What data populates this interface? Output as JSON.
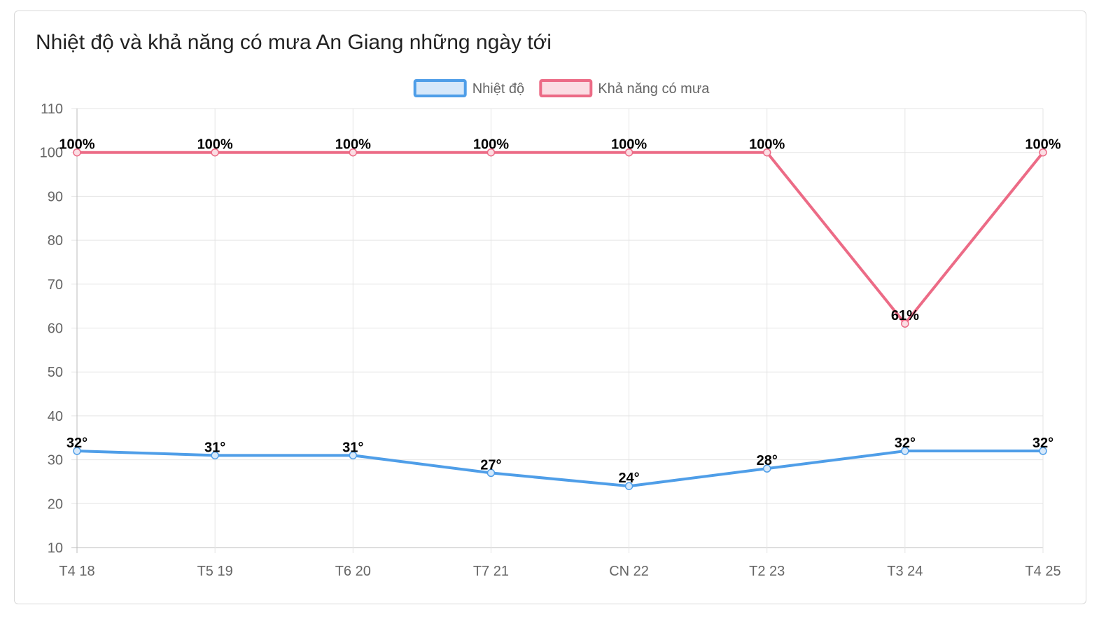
{
  "card": {
    "title": "Nhiệt độ và khả năng có mưa An Giang những ngày tới"
  },
  "chart_data": {
    "type": "line",
    "title": "Nhiệt độ và khả năng có mưa An Giang những ngày tới",
    "categories": [
      "T4 18",
      "T5 19",
      "T6 20",
      "T7 21",
      "CN 22",
      "T2 23",
      "T3 24",
      "T4 25"
    ],
    "series": [
      {
        "name": "Nhiệt độ",
        "values": [
          32,
          31,
          31,
          27,
          24,
          28,
          32,
          32
        ],
        "labels": [
          "32°",
          "31°",
          "31°",
          "27°",
          "24°",
          "28°",
          "32°",
          "32°"
        ],
        "color": "#4f9ee8",
        "fill": "#d6e8fa"
      },
      {
        "name": "Khả năng có mưa",
        "values": [
          100,
          100,
          100,
          100,
          100,
          100,
          61,
          100
        ],
        "labels": [
          "100%",
          "100%",
          "100%",
          "100%",
          "100%",
          "100%",
          "61%",
          "100%"
        ],
        "color": "#ec6b86",
        "fill": "#fbdde3"
      }
    ],
    "ylim": [
      10,
      110
    ],
    "yticks": [
      "10",
      "20",
      "30",
      "40",
      "50",
      "60",
      "70",
      "80",
      "90",
      "100",
      "110"
    ],
    "grid": true,
    "legend": "top-center",
    "xlabel": "",
    "ylabel": ""
  }
}
